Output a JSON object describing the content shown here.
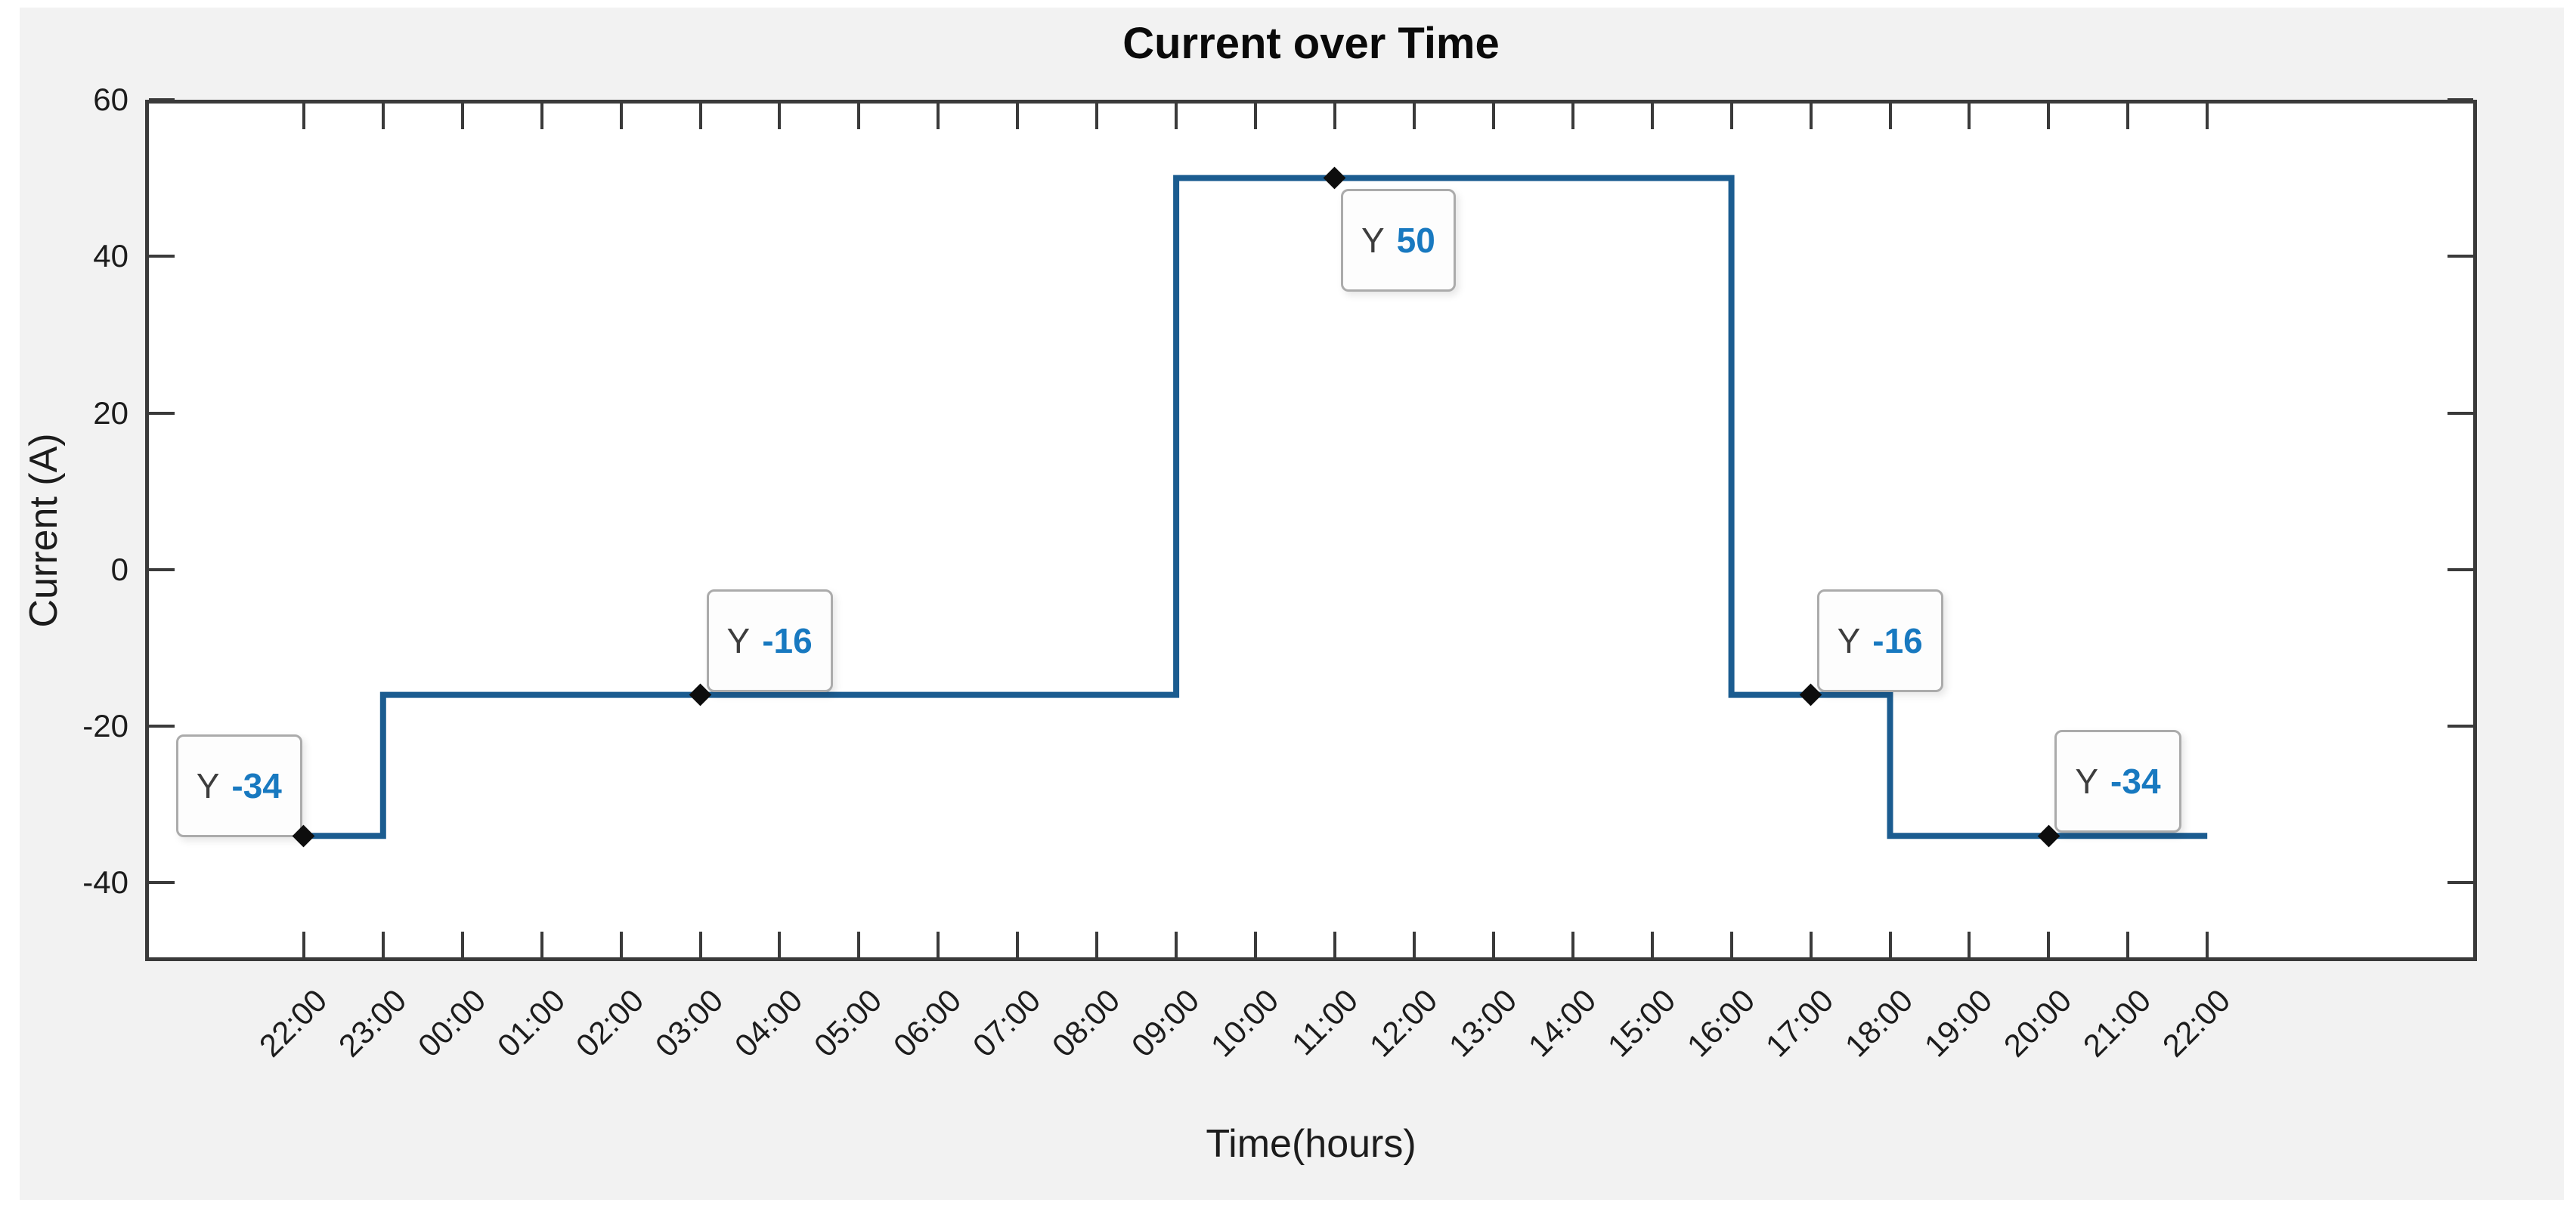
{
  "figure": {
    "bg_color": "#f2f2f2",
    "plot_bg": "#ffffff",
    "axis_color": "#3a3a3a",
    "text_color": "#1c1c1c"
  },
  "chart_data": {
    "type": "line",
    "line_style": "stairs",
    "title": "Current over Time",
    "xlabel": "Time(hours)",
    "ylabel": "Current (A)",
    "line_color": "#1b5c90",
    "marker_color": "#0d0d0d",
    "grid": "off",
    "legend": "none",
    "ylim": [
      -50,
      60
    ],
    "xlim_hours": [
      -2,
      27.4
    ],
    "y_ticks": [
      -40,
      -20,
      0,
      20,
      40,
      60
    ],
    "y_tick_labels": [
      "-40",
      "-20",
      "0",
      "20",
      "40",
      "60"
    ],
    "x_tick_labels": [
      "22:00",
      "23:00",
      "00:00",
      "01:00",
      "02:00",
      "03:00",
      "04:00",
      "05:00",
      "06:00",
      "07:00",
      "08:00",
      "09:00",
      "10:00",
      "11:00",
      "12:00",
      "13:00",
      "14:00",
      "15:00",
      "16:00",
      "17:00",
      "18:00",
      "19:00",
      "20:00",
      "21:00",
      "22:00"
    ],
    "step_points_hours": [
      [
        0,
        -34
      ],
      [
        1,
        -34
      ],
      [
        1,
        -16
      ],
      [
        11,
        -16
      ],
      [
        11,
        50
      ],
      [
        18,
        50
      ],
      [
        18,
        -16
      ],
      [
        20,
        -16
      ],
      [
        20,
        -34
      ],
      [
        24,
        -34
      ]
    ],
    "segments": [
      {
        "start": "22:00",
        "end": "23:00",
        "current_A": -34
      },
      {
        "start": "23:00",
        "end": "09:00",
        "current_A": -16
      },
      {
        "start": "09:00",
        "end": "16:00",
        "current_A": 50
      },
      {
        "start": "16:00",
        "end": "18:00",
        "current_A": -16
      },
      {
        "start": "18:00",
        "end": "22:00",
        "current_A": -34
      }
    ],
    "datatips": [
      {
        "time": "22:00",
        "hour": 0,
        "value": "-34",
        "prefix": "Y",
        "anchor": "above-left"
      },
      {
        "time": "03:00",
        "hour": 5,
        "value": "-16",
        "prefix": "Y",
        "anchor": "above-right"
      },
      {
        "time": "11:00",
        "hour": 13,
        "value": "50",
        "prefix": "Y",
        "anchor": "below-right"
      },
      {
        "time": "17:00",
        "hour": 19,
        "value": "-16",
        "prefix": "Y",
        "anchor": "above-right"
      },
      {
        "time": "20:00",
        "hour": 22,
        "value": "-34",
        "prefix": "Y",
        "anchor": "above-right"
      }
    ],
    "datatip_style": {
      "bg": "#fdfdfd",
      "border": "#ababab",
      "prefix_color": "#3d3d3d",
      "value_color": "#1879c0"
    }
  }
}
